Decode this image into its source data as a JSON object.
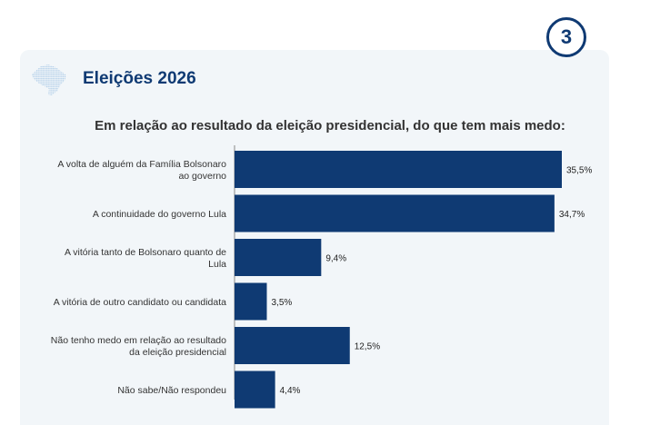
{
  "badge": "3",
  "section_title": "Eleições 2026",
  "question": "Em relação ao resultado da eleição presidencial, do que tem mais medo:",
  "colors": {
    "bar": "#0f3a73",
    "accent": "#0f3a73",
    "map": "#a9c9e6",
    "card": "#f2f6f9"
  },
  "icons": {
    "header": "brazil-map-icon"
  },
  "chart_data": {
    "type": "bar",
    "orientation": "horizontal",
    "categories": [
      [
        "A volta de alguém da Família Bolsonaro",
        "ao governo"
      ],
      [
        "A continuidade do governo Lula"
      ],
      [
        "A vitória tanto de Bolsonaro quanto de",
        "Lula"
      ],
      [
        "A vitória de outro candidato ou candidata"
      ],
      [
        "Não tenho medo em relação ao resultado",
        "da eleição presidencial"
      ],
      [
        "Não sabe/Não respondeu"
      ]
    ],
    "values": [
      35.5,
      34.7,
      9.4,
      3.5,
      12.5,
      4.4
    ],
    "value_labels": [
      "35,5%",
      "34,7%",
      "9,4%",
      "3,5%",
      "12,5%",
      "4,4%"
    ],
    "unit": "%",
    "xlim": [
      0,
      35.5
    ],
    "grid": false,
    "legend": "none"
  }
}
